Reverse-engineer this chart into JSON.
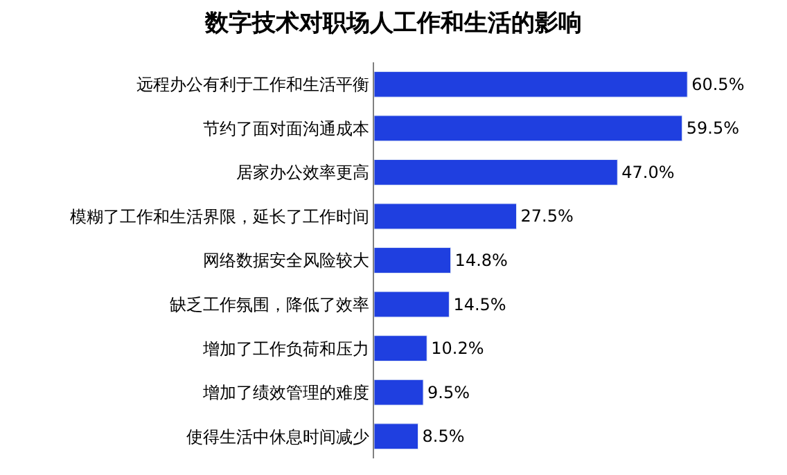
{
  "chart_data": {
    "type": "bar",
    "orientation": "horizontal",
    "title": "数字技术对职场人工作和生活的影响",
    "categories": [
      "远程办公有利于工作和生活平衡",
      "节约了面对面沟通成本",
      "居家办公效率更高",
      "模糊了工作和生活界限，延长了工作时间",
      "网络数据安全风险较大",
      "缺乏工作氛围，降低了效率",
      "增加了工作负荷和压力",
      "增加了绩效管理的难度",
      "使得生活中休息时间减少"
    ],
    "values": [
      60.5,
      59.5,
      47.0,
      27.5,
      14.8,
      14.5,
      10.2,
      9.5,
      8.5
    ],
    "value_labels": [
      "60.5%",
      "59.5%",
      "47.0%",
      "27.5%",
      "14.8%",
      "14.5%",
      "10.2%",
      "9.5%",
      "8.5%"
    ],
    "color": "#1f3fe0"
  }
}
